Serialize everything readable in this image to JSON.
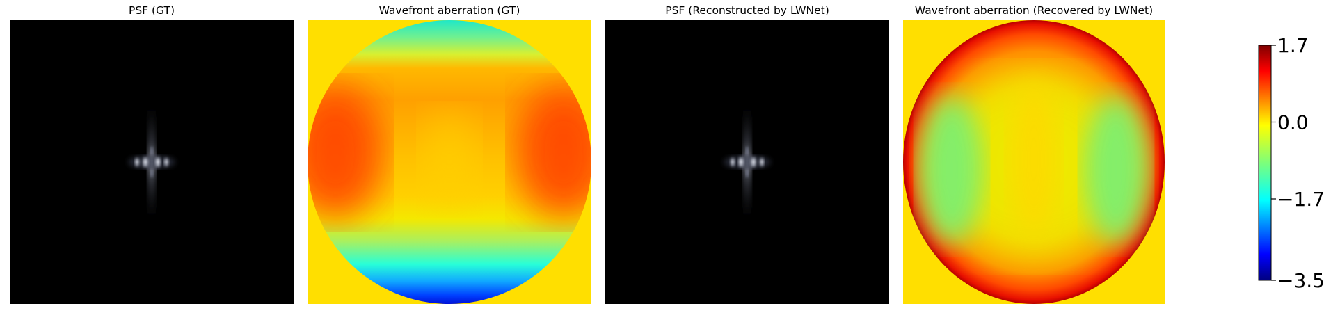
{
  "chart_data": [
    {
      "type": "heatmap",
      "title": "PSF (GT)",
      "colormap": "grayscale",
      "content": "point-spread-function"
    },
    {
      "type": "heatmap",
      "title": "Wavefront aberration (GT)",
      "colormap": "jet",
      "content": "circular-pupil-wavefront"
    },
    {
      "type": "heatmap",
      "title": "PSF (Reconstructed by LWNet)",
      "colormap": "grayscale",
      "content": "point-spread-function"
    },
    {
      "type": "heatmap",
      "title": "Wavefront aberration (Recovered by LWNet)",
      "colormap": "jet",
      "content": "circular-pupil-wavefront"
    }
  ],
  "colorbar": {
    "colormap": "jet",
    "range": [
      -3.5,
      1.7
    ],
    "ticks": [
      {
        "value": 1.7,
        "label": "1.7"
      },
      {
        "value": 0.0,
        "label": "0.0"
      },
      {
        "value": -1.7,
        "label": "−1.7"
      },
      {
        "value": -3.5,
        "label": "−3.5"
      }
    ]
  },
  "colors": {
    "background_fill": "#ffdf00",
    "psf_background": "#000000",
    "psf_highlight": "#ffffff"
  }
}
